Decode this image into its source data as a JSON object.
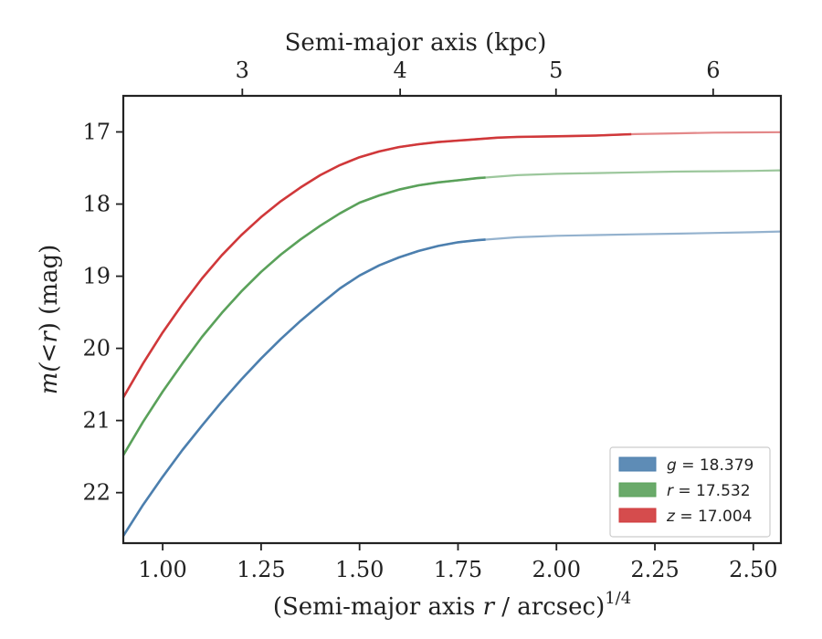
{
  "chart_data": {
    "type": "line",
    "title": "",
    "xlabel_bottom": "(Semi-major axis r / arcsec)^(1/4)",
    "xlabel_top": "Semi-major axis (kpc)",
    "ylabel": "m(<r) (mag)",
    "xlim": [
      0.9,
      2.57
    ],
    "ylim": [
      22.7,
      16.5
    ],
    "y_inverted": true,
    "x_ticks": [
      "1.00",
      "1.25",
      "1.50",
      "1.75",
      "2.00",
      "2.25",
      "2.50"
    ],
    "y_ticks": [
      "17",
      "18",
      "19",
      "20",
      "21",
      "22"
    ],
    "top_ticks": [
      "3",
      "4",
      "5",
      "6"
    ],
    "grid": false,
    "legend_position": "lower-right",
    "series": [
      {
        "name": "g = 18.379",
        "band": "g",
        "value": "18.379",
        "color": "#4c7fae",
        "x": [
          0.9,
          0.95,
          1.0,
          1.05,
          1.1,
          1.15,
          1.2,
          1.25,
          1.3,
          1.35,
          1.4,
          1.45,
          1.5,
          1.55,
          1.6,
          1.65,
          1.7,
          1.75,
          1.8,
          1.85,
          1.9,
          1.95,
          2.0,
          2.1,
          2.2,
          2.3,
          2.4,
          2.5,
          2.57
        ],
        "y": [
          22.6,
          22.17,
          21.78,
          21.41,
          21.07,
          20.74,
          20.43,
          20.14,
          19.87,
          19.62,
          19.39,
          19.17,
          18.99,
          18.85,
          18.74,
          18.65,
          18.58,
          18.53,
          18.5,
          18.48,
          18.46,
          18.45,
          18.44,
          18.43,
          18.42,
          18.41,
          18.4,
          18.39,
          18.38
        ]
      },
      {
        "name": "r = 17.532",
        "band": "r",
        "value": "17.532",
        "color": "#5aa15a",
        "x": [
          0.9,
          0.95,
          1.0,
          1.05,
          1.1,
          1.15,
          1.2,
          1.25,
          1.3,
          1.35,
          1.4,
          1.45,
          1.5,
          1.55,
          1.6,
          1.65,
          1.7,
          1.75,
          1.8,
          1.85,
          1.9,
          2.0,
          2.1,
          2.2,
          2.3,
          2.4,
          2.5,
          2.57
        ],
        "y": [
          21.48,
          21.02,
          20.6,
          20.21,
          19.84,
          19.51,
          19.21,
          18.94,
          18.7,
          18.49,
          18.3,
          18.13,
          17.98,
          17.88,
          17.8,
          17.74,
          17.7,
          17.67,
          17.64,
          17.62,
          17.6,
          17.58,
          17.57,
          17.56,
          17.55,
          17.545,
          17.54,
          17.532
        ]
      },
      {
        "name": "z = 17.004",
        "band": "z",
        "value": "17.004",
        "color": "#d0383a",
        "x": [
          0.9,
          0.95,
          1.0,
          1.05,
          1.1,
          1.15,
          1.2,
          1.25,
          1.3,
          1.35,
          1.4,
          1.45,
          1.5,
          1.55,
          1.6,
          1.65,
          1.7,
          1.75,
          1.8,
          1.85,
          1.9,
          2.0,
          2.1,
          2.2,
          2.3,
          2.4,
          2.5,
          2.57
        ],
        "y": [
          20.68,
          20.21,
          19.78,
          19.39,
          19.03,
          18.71,
          18.43,
          18.18,
          17.96,
          17.77,
          17.6,
          17.46,
          17.35,
          17.27,
          17.21,
          17.17,
          17.14,
          17.12,
          17.1,
          17.08,
          17.07,
          17.06,
          17.05,
          17.03,
          17.02,
          17.01,
          17.006,
          17.004
        ]
      }
    ],
    "faded_start_x": [
      1.82,
      1.82,
      2.19
    ]
  }
}
